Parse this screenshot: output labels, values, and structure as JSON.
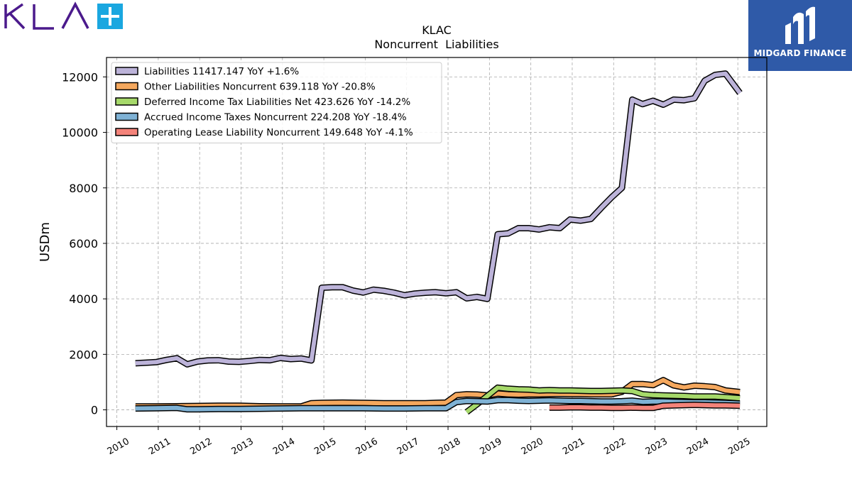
{
  "header": {
    "brand_name": "MIDGARD FINANCE",
    "logo_text": "KLA",
    "logo_icon": "plus-icon",
    "brand_color": "#2f5aa8",
    "logo_color": "#4b1a8c",
    "logo_accent": "#1aa7e0"
  },
  "chart_data": {
    "type": "line",
    "title": "KLAC",
    "subtitle": "Noncurrent  Liabilities",
    "ylabel": "USDm",
    "xlabel": "",
    "xlim": [
      2009.75,
      2025.7
    ],
    "ylim": [
      -600,
      12700
    ],
    "yticks": [
      0,
      2000,
      4000,
      6000,
      8000,
      10000,
      12000
    ],
    "xticks": [
      2010,
      2011,
      2012,
      2013,
      2014,
      2015,
      2016,
      2017,
      2018,
      2019,
      2020,
      2021,
      2022,
      2023,
      2024,
      2025
    ],
    "grid": true,
    "legend_position": "top-left",
    "series": [
      {
        "name": "Liabilities",
        "legend": "Liabilities  11417.147 YoY +1.6%",
        "color": "#bcb3d9",
        "x": [
          2010.45,
          2010.7,
          2010.95,
          2011.2,
          2011.45,
          2011.7,
          2011.95,
          2012.2,
          2012.45,
          2012.7,
          2012.95,
          2013.2,
          2013.45,
          2013.7,
          2013.95,
          2014.2,
          2014.45,
          2014.7,
          2014.95,
          2015.2,
          2015.45,
          2015.7,
          2015.95,
          2016.2,
          2016.45,
          2016.7,
          2016.95,
          2017.2,
          2017.45,
          2017.7,
          2017.95,
          2018.2,
          2018.45,
          2018.7,
          2018.95,
          2019.2,
          2019.45,
          2019.7,
          2019.95,
          2020.2,
          2020.45,
          2020.7,
          2020.95,
          2021.2,
          2021.45,
          2021.7,
          2021.95,
          2022.2,
          2022.45,
          2022.7,
          2022.95,
          2023.2,
          2023.45,
          2023.7,
          2023.95,
          2024.2,
          2024.45,
          2024.7,
          2025.05
        ],
        "values": [
          1680,
          1700,
          1720,
          1800,
          1860,
          1640,
          1740,
          1780,
          1790,
          1740,
          1730,
          1760,
          1800,
          1790,
          1870,
          1830,
          1850,
          1780,
          4400,
          4420,
          4420,
          4300,
          4230,
          4330,
          4290,
          4220,
          4130,
          4190,
          4220,
          4240,
          4200,
          4240,
          4020,
          4070,
          4000,
          6330,
          6360,
          6550,
          6550,
          6500,
          6580,
          6550,
          6860,
          6820,
          6880,
          7280,
          7660,
          8000,
          11180,
          11020,
          11140,
          11000,
          11180,
          11160,
          11230,
          11860,
          12070,
          12120,
          11420
        ]
      },
      {
        "name": "Other Liabilities Noncurrent",
        "legend": "Other Liabilities Noncurrent  639.118 YoY -20.8%",
        "color": "#f5a85e",
        "x": [
          2010.45,
          2010.95,
          2011.45,
          2011.95,
          2012.45,
          2012.95,
          2013.45,
          2013.95,
          2014.45,
          2014.7,
          2014.95,
          2015.45,
          2015.95,
          2016.45,
          2016.95,
          2017.45,
          2017.7,
          2017.95,
          2018.2,
          2018.45,
          2018.7,
          2018.95,
          2019.2,
          2019.45,
          2019.7,
          2019.95,
          2020.2,
          2020.45,
          2020.7,
          2020.95,
          2021.2,
          2021.45,
          2021.7,
          2021.95,
          2022.2,
          2022.45,
          2022.7,
          2022.95,
          2023.2,
          2023.45,
          2023.7,
          2023.95,
          2024.2,
          2024.45,
          2024.7,
          2025.05
        ],
        "values": [
          120,
          120,
          130,
          140,
          150,
          150,
          130,
          120,
          120,
          240,
          250,
          260,
          250,
          240,
          240,
          240,
          250,
          260,
          530,
          560,
          550,
          520,
          590,
          560,
          550,
          560,
          560,
          570,
          580,
          570,
          570,
          560,
          560,
          560,
          650,
          930,
          930,
          890,
          1070,
          880,
          810,
          870,
          850,
          820,
          700,
          640
        ]
      },
      {
        "name": "Deferred Income Tax Liabilities Net",
        "legend": "Deferred Income Tax Liabilities Net  423.626 YoY -14.2%",
        "color": "#a6d96a",
        "x": [
          2018.45,
          2018.7,
          2018.95,
          2019.2,
          2019.45,
          2019.7,
          2019.95,
          2020.2,
          2020.45,
          2020.7,
          2020.95,
          2021.2,
          2021.45,
          2021.7,
          2021.95,
          2022.2,
          2022.45,
          2022.7,
          2022.95,
          2023.2,
          2023.45,
          2023.7,
          2023.95,
          2024.2,
          2024.45,
          2024.7,
          2025.05
        ],
        "values": [
          -80,
          200,
          500,
          800,
          760,
          740,
          730,
          700,
          710,
          700,
          700,
          690,
          680,
          680,
          690,
          700,
          680,
          560,
          530,
          520,
          510,
          500,
          480,
          480,
          480,
          460,
          420
        ]
      },
      {
        "name": "Accrued Income Taxes Noncurrent",
        "legend": "Accrued Income Taxes Noncurrent  224.208 YoY -18.4%",
        "color": "#7fb2d5",
        "x": [
          2010.45,
          2010.95,
          2011.45,
          2011.7,
          2011.95,
          2012.45,
          2012.95,
          2013.45,
          2013.95,
          2014.45,
          2014.95,
          2015.45,
          2015.95,
          2016.45,
          2016.95,
          2017.45,
          2017.95,
          2018.2,
          2018.45,
          2018.7,
          2018.95,
          2019.2,
          2019.45,
          2019.7,
          2019.95,
          2020.2,
          2020.45,
          2020.7,
          2020.95,
          2021.2,
          2021.45,
          2021.7,
          2021.95,
          2022.2,
          2022.45,
          2022.7,
          2022.95,
          2023.2,
          2023.45,
          2023.7,
          2023.95,
          2024.2,
          2024.45,
          2024.7,
          2025.05
        ],
        "values": [
          50,
          60,
          70,
          20,
          20,
          30,
          30,
          40,
          50,
          60,
          60,
          60,
          60,
          50,
          50,
          60,
          60,
          280,
          320,
          310,
          300,
          350,
          350,
          330,
          320,
          330,
          340,
          330,
          320,
          320,
          310,
          300,
          300,
          310,
          330,
          290,
          300,
          300,
          290,
          280,
          270,
          270,
          260,
          250,
          224
        ]
      },
      {
        "name": "Operating Lease Liability Noncurrent",
        "legend": "Operating Lease Liability Noncurrent  149.648 YoY -4.1%",
        "color": "#f4837a",
        "x": [
          2020.45,
          2020.7,
          2020.95,
          2021.2,
          2021.45,
          2021.7,
          2021.95,
          2022.2,
          2022.45,
          2022.7,
          2022.95,
          2023.2,
          2023.45,
          2023.7,
          2023.95,
          2024.2,
          2024.45,
          2024.7,
          2025.05
        ],
        "values": [
          80,
          80,
          90,
          90,
          80,
          80,
          70,
          70,
          80,
          70,
          70,
          150,
          160,
          170,
          180,
          170,
          160,
          160,
          150
        ]
      }
    ]
  }
}
